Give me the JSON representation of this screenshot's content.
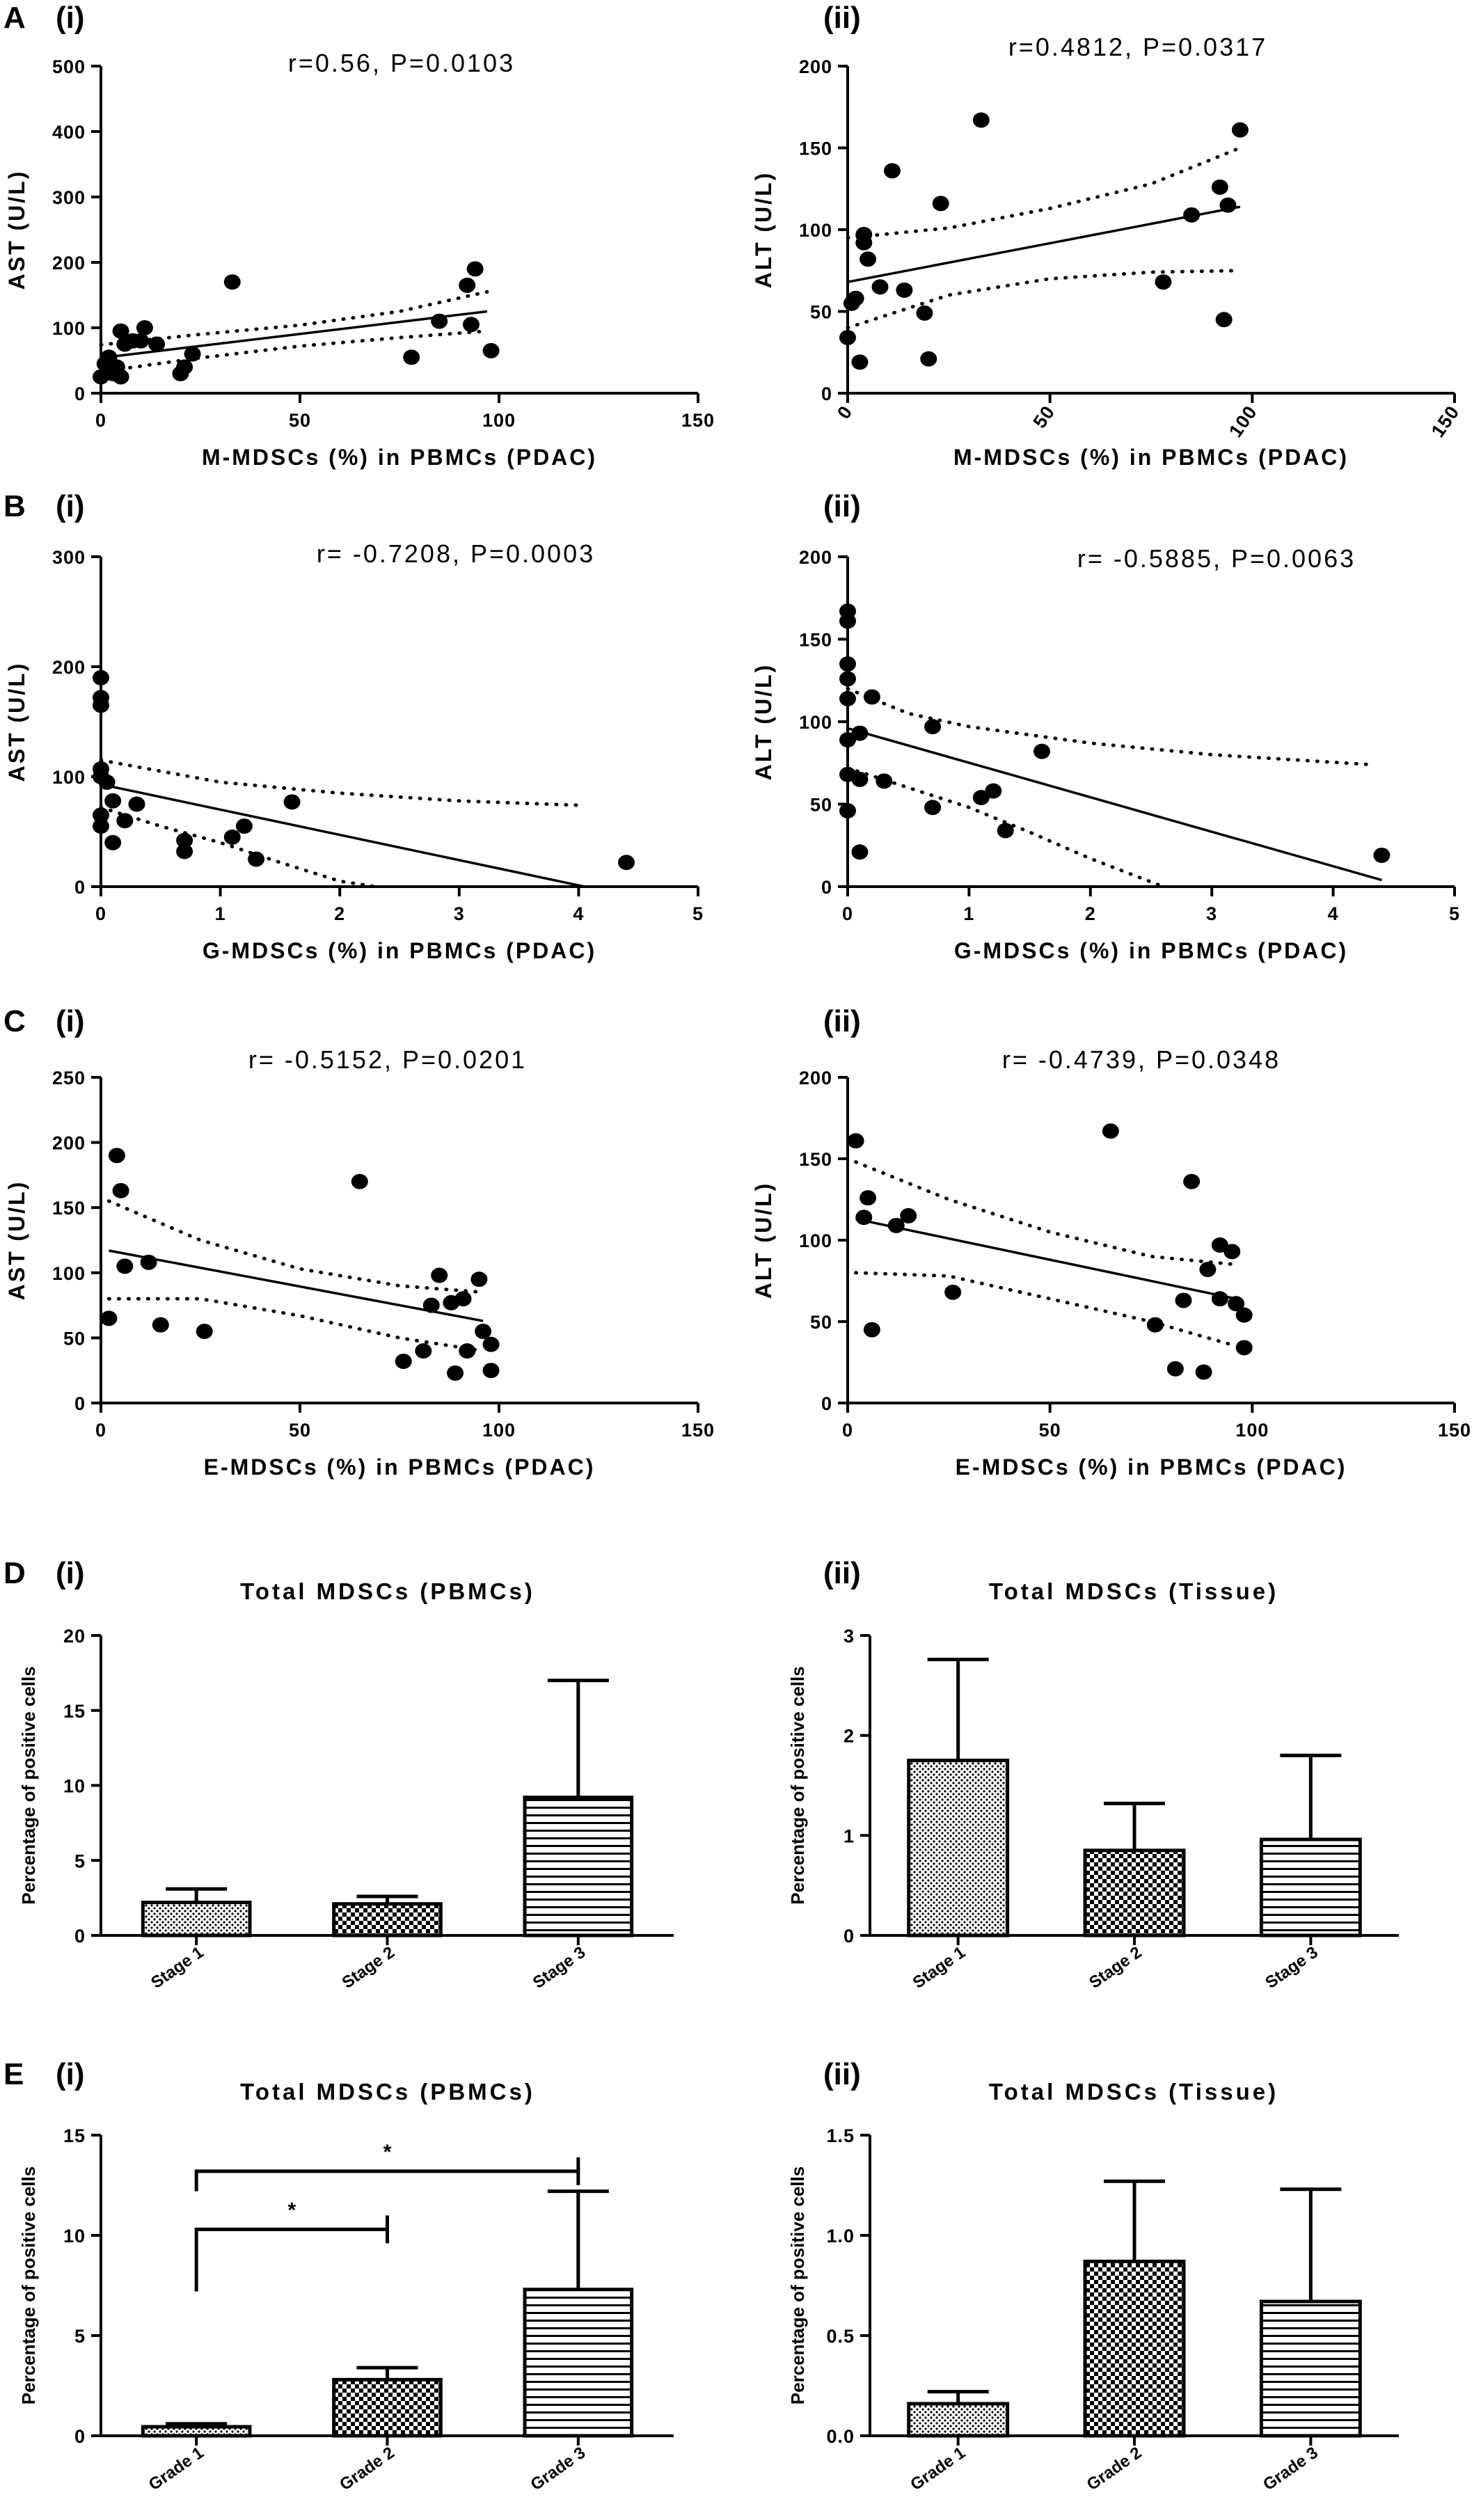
{
  "chart_data": [
    {
      "id": "A-i",
      "panel_letter": "A",
      "subpanel": "(i)",
      "type": "scatter",
      "title": "r=0.56, P=0.0103",
      "xlabel": "M-MDSCs (%) in PBMCs (PDAC)",
      "ylabel": "AST (U/L)",
      "xlim": [
        0,
        150
      ],
      "ylim": [
        0,
        500
      ],
      "xticks": [
        0,
        50,
        100,
        150
      ],
      "xtick_rotate": false,
      "yticks": [
        0,
        100,
        200,
        300,
        400,
        500
      ],
      "points": [
        [
          0,
          25
        ],
        [
          1,
          45
        ],
        [
          2,
          55
        ],
        [
          3,
          30
        ],
        [
          4,
          40
        ],
        [
          5,
          95
        ],
        [
          5,
          25
        ],
        [
          6,
          75
        ],
        [
          8,
          80
        ],
        [
          10,
          80
        ],
        [
          11,
          100
        ],
        [
          14,
          75
        ],
        [
          20,
          30
        ],
        [
          21,
          40
        ],
        [
          23,
          60
        ],
        [
          33,
          170
        ],
        [
          78,
          55
        ],
        [
          85,
          110
        ],
        [
          92,
          165
        ],
        [
          93,
          105
        ],
        [
          94,
          190
        ],
        [
          98,
          65
        ]
      ],
      "fit": [
        [
          0,
          54
        ],
        [
          97,
          125
        ]
      ],
      "ci_upper": [
        [
          0,
          74
        ],
        [
          25,
          90
        ],
        [
          50,
          104
        ],
        [
          75,
          125
        ],
        [
          97,
          155
        ]
      ],
      "ci_lower": [
        [
          0,
          33
        ],
        [
          25,
          54
        ],
        [
          50,
          72
        ],
        [
          75,
          85
        ],
        [
          97,
          95
        ]
      ]
    },
    {
      "id": "A-ii",
      "panel_letter": "",
      "subpanel": "(ii)",
      "type": "scatter",
      "title": "r=0.4812, P=0.0317",
      "xlabel": "M-MDSCs (%) in PBMCs (PDAC)",
      "ylabel": "ALT (U/L)",
      "xlim": [
        0,
        150
      ],
      "ylim": [
        0,
        200
      ],
      "xticks": [
        0,
        50,
        100,
        150
      ],
      "xtick_rotate": true,
      "yticks": [
        0,
        50,
        100,
        150,
        200
      ],
      "points": [
        [
          0,
          34
        ],
        [
          1,
          55
        ],
        [
          2,
          58
        ],
        [
          3,
          19
        ],
        [
          4,
          97
        ],
        [
          4,
          92
        ],
        [
          5,
          82
        ],
        [
          8,
          65
        ],
        [
          11,
          136
        ],
        [
          14,
          63
        ],
        [
          19,
          49
        ],
        [
          20,
          21
        ],
        [
          23,
          116
        ],
        [
          33,
          167
        ],
        [
          78,
          68
        ],
        [
          85,
          109
        ],
        [
          92,
          126
        ],
        [
          93,
          45
        ],
        [
          94,
          115
        ],
        [
          97,
          161
        ]
      ],
      "fit": [
        [
          0,
          68
        ],
        [
          97,
          114
        ]
      ],
      "ci_upper": [
        [
          0,
          95
        ],
        [
          25,
          101
        ],
        [
          50,
          113
        ],
        [
          75,
          128
        ],
        [
          97,
          150
        ]
      ],
      "ci_lower": [
        [
          0,
          40
        ],
        [
          25,
          60
        ],
        [
          50,
          70
        ],
        [
          75,
          74
        ],
        [
          97,
          75
        ]
      ]
    },
    {
      "id": "B-i",
      "panel_letter": "B",
      "subpanel": "(i)",
      "type": "scatter",
      "title": "r= -0.7208, P=0.0003",
      "xlabel": "G-MDSCs (%) in PBMCs (PDAC)",
      "ylabel": "AST (U/L)",
      "xlim": [
        0,
        5
      ],
      "ylim": [
        0,
        300
      ],
      "xticks": [
        0,
        1,
        2,
        3,
        4,
        5
      ],
      "xtick_rotate": false,
      "yticks": [
        0,
        100,
        200,
        300
      ],
      "points": [
        [
          0,
          190
        ],
        [
          0,
          172
        ],
        [
          0,
          165
        ],
        [
          0,
          107
        ],
        [
          0,
          100
        ],
        [
          0,
          65
        ],
        [
          0,
          55
        ],
        [
          0.05,
          95
        ],
        [
          0.1,
          78
        ],
        [
          0.1,
          40
        ],
        [
          0.2,
          60
        ],
        [
          0.3,
          75
        ],
        [
          0.7,
          42
        ],
        [
          0.7,
          32
        ],
        [
          1.1,
          45
        ],
        [
          1.2,
          55
        ],
        [
          1.3,
          25
        ],
        [
          1.6,
          77
        ],
        [
          4.4,
          22
        ]
      ],
      "fit": [
        [
          0,
          93
        ],
        [
          4.05,
          0
        ]
      ],
      "ci_upper": [
        [
          0,
          115
        ],
        [
          1,
          95
        ],
        [
          2,
          85
        ],
        [
          3,
          78
        ],
        [
          4,
          74
        ]
      ],
      "ci_lower": [
        [
          0,
          72
        ],
        [
          0.5,
          55
        ],
        [
          1,
          40
        ],
        [
          1.5,
          22
        ],
        [
          2,
          5
        ],
        [
          2.3,
          -2
        ]
      ]
    },
    {
      "id": "B-ii",
      "panel_letter": "",
      "subpanel": "(ii)",
      "type": "scatter",
      "title": "r= -0.5885, P=0.0063",
      "xlabel": "G-MDSCs (%) in PBMCs (PDAC)",
      "ylabel": "ALT (U/L)",
      "xlim": [
        0,
        5
      ],
      "ylim": [
        0,
        200
      ],
      "xticks": [
        0,
        1,
        2,
        3,
        4,
        5
      ],
      "xtick_rotate": false,
      "yticks": [
        0,
        50,
        100,
        150,
        200
      ],
      "points": [
        [
          0,
          167
        ],
        [
          0,
          161
        ],
        [
          0,
          135
        ],
        [
          0,
          126
        ],
        [
          0,
          114
        ],
        [
          0,
          89
        ],
        [
          0,
          68
        ],
        [
          0,
          46
        ],
        [
          0.1,
          93
        ],
        [
          0.1,
          65
        ],
        [
          0.1,
          21
        ],
        [
          0.2,
          115
        ],
        [
          0.3,
          64
        ],
        [
          0.7,
          97
        ],
        [
          0.7,
          48
        ],
        [
          1.1,
          54
        ],
        [
          1.2,
          58
        ],
        [
          1.3,
          34
        ],
        [
          1.6,
          82
        ],
        [
          4.4,
          19
        ]
      ],
      "fit": [
        [
          0,
          96
        ],
        [
          4.4,
          4
        ]
      ],
      "ci_upper": [
        [
          0,
          120
        ],
        [
          0.5,
          105
        ],
        [
          1,
          97
        ],
        [
          2,
          87
        ],
        [
          3,
          80
        ],
        [
          4.3,
          74
        ]
      ],
      "ci_lower": [
        [
          0,
          72
        ],
        [
          0.5,
          60
        ],
        [
          1,
          48
        ],
        [
          1.5,
          33
        ],
        [
          2,
          17
        ],
        [
          2.6,
          0
        ]
      ]
    },
    {
      "id": "C-i",
      "panel_letter": "C",
      "subpanel": "(i)",
      "type": "scatter",
      "title": "r= -0.5152, P=0.0201",
      "xlabel": "E-MDSCs (%) in PBMCs (PDAC)",
      "ylabel": "AST (U/L)",
      "xlim": [
        0,
        150
      ],
      "ylim": [
        0,
        250
      ],
      "xticks": [
        0,
        50,
        100,
        150
      ],
      "xtick_rotate": false,
      "yticks": [
        0,
        50,
        100,
        150,
        200,
        250
      ],
      "points": [
        [
          2,
          65
        ],
        [
          4,
          190
        ],
        [
          5,
          163
        ],
        [
          6,
          105
        ],
        [
          12,
          108
        ],
        [
          15,
          60
        ],
        [
          26,
          55
        ],
        [
          65,
          170
        ],
        [
          76,
          32
        ],
        [
          81,
          40
        ],
        [
          83,
          75
        ],
        [
          85,
          98
        ],
        [
          88,
          77
        ],
        [
          89,
          23
        ],
        [
          91,
          80
        ],
        [
          92,
          40
        ],
        [
          95,
          95
        ],
        [
          96,
          55
        ],
        [
          98,
          45
        ],
        [
          98,
          25
        ]
      ],
      "fit": [
        [
          2,
          117
        ],
        [
          96,
          63
        ]
      ],
      "ci_upper": [
        [
          2,
          155
        ],
        [
          25,
          125
        ],
        [
          50,
          103
        ],
        [
          75,
          90
        ],
        [
          96,
          85
        ]
      ],
      "ci_lower": [
        [
          2,
          80
        ],
        [
          25,
          80
        ],
        [
          50,
          67
        ],
        [
          75,
          50
        ],
        [
          96,
          40
        ]
      ]
    },
    {
      "id": "C-ii",
      "panel_letter": "",
      "subpanel": "(ii)",
      "type": "scatter",
      "title": "r= -0.4739, P=0.0348",
      "xlabel": "E-MDSCs (%) in PBMCs (PDAC)",
      "ylabel": "ALT (U/L)",
      "xlim": [
        0,
        150
      ],
      "ylim": [
        0,
        200
      ],
      "xticks": [
        0,
        50,
        100,
        150
      ],
      "xtick_rotate": false,
      "yticks": [
        0,
        50,
        100,
        150,
        200
      ],
      "points": [
        [
          2,
          161
        ],
        [
          4,
          114
        ],
        [
          5,
          126
        ],
        [
          6,
          45
        ],
        [
          12,
          109
        ],
        [
          15,
          115
        ],
        [
          26,
          68
        ],
        [
          65,
          167
        ],
        [
          76,
          48
        ],
        [
          81,
          21
        ],
        [
          83,
          63
        ],
        [
          85,
          136
        ],
        [
          88,
          19
        ],
        [
          89,
          82
        ],
        [
          92,
          64
        ],
        [
          92,
          97
        ],
        [
          95,
          93
        ],
        [
          96,
          61
        ],
        [
          98,
          54
        ],
        [
          98,
          34
        ]
      ],
      "fit": [
        [
          2,
          113
        ],
        [
          96,
          64
        ]
      ],
      "ci_upper": [
        [
          2,
          148
        ],
        [
          25,
          125
        ],
        [
          50,
          105
        ],
        [
          75,
          90
        ],
        [
          96,
          85
        ]
      ],
      "ci_lower": [
        [
          2,
          80
        ],
        [
          25,
          78
        ],
        [
          50,
          64
        ],
        [
          75,
          50
        ],
        [
          96,
          35
        ]
      ]
    },
    {
      "id": "D-i",
      "panel_letter": "D",
      "subpanel": "(i)",
      "type": "bar",
      "title": "Total MDSCs (PBMCs)",
      "xlabel": "",
      "ylabel": "Percentage of positive cells",
      "ylim": [
        0,
        20
      ],
      "yticks": [
        0,
        5,
        10,
        15,
        20
      ],
      "ytick_decimals": 0,
      "categories": [
        "Stage 1",
        "Stage 2",
        "Stage 3"
      ],
      "values": [
        2.2,
        2.1,
        9.2
      ],
      "errors": [
        0.9,
        0.5,
        7.8
      ],
      "patterns": [
        "dots",
        "checks",
        "hlines"
      ],
      "sig": []
    },
    {
      "id": "D-ii",
      "panel_letter": "",
      "subpanel": "(ii)",
      "type": "bar",
      "title": "Total MDSCs (Tissue)",
      "xlabel": "",
      "ylabel": "Percentage of positive cells",
      "ylim": [
        0,
        3
      ],
      "yticks": [
        0,
        1,
        2,
        3
      ],
      "ytick_decimals": 0,
      "categories": [
        "Stage 1",
        "Stage 2",
        "Stage 3"
      ],
      "values": [
        1.75,
        0.85,
        0.96
      ],
      "errors": [
        1.01,
        0.47,
        0.84
      ],
      "patterns": [
        "dots",
        "checks",
        "hlines"
      ],
      "sig": []
    },
    {
      "id": "E-i",
      "panel_letter": "E",
      "subpanel": "(i)",
      "type": "bar",
      "title": "Total MDSCs (PBMCs)",
      "xlabel": "",
      "ylabel": "Percentage of positive cells",
      "ylim": [
        0,
        15
      ],
      "yticks": [
        0,
        5,
        10,
        15
      ],
      "ytick_decimals": 0,
      "categories": [
        "Grade 1",
        "Grade 2",
        "Grade 3"
      ],
      "values": [
        0.45,
        2.8,
        7.3
      ],
      "errors": [
        0.15,
        0.6,
        4.9
      ],
      "patterns": [
        "dots",
        "checks",
        "hlines"
      ],
      "sig": [
        {
          "from": 0,
          "to": 1,
          "level": 10.3,
          "drop": 7.2,
          "label": "*"
        },
        {
          "from": 0,
          "to": 2,
          "level": 13.2,
          "drop": 12.2,
          "label": "*"
        }
      ]
    },
    {
      "id": "E-ii",
      "panel_letter": "",
      "subpanel": "(ii)",
      "type": "bar",
      "title": "Total MDSCs (Tissue)",
      "xlabel": "",
      "ylabel": "Percentage of positive cells",
      "ylim": [
        0,
        1.5
      ],
      "yticks": [
        0,
        0.5,
        1,
        1.5
      ],
      "ytick_decimals": 1,
      "categories": [
        "Grade 1",
        "Grade 2",
        "Grade 3"
      ],
      "values": [
        0.16,
        0.87,
        0.67
      ],
      "errors": [
        0.06,
        0.4,
        0.56
      ],
      "patterns": [
        "dots",
        "checks",
        "hlines"
      ],
      "sig": []
    }
  ]
}
